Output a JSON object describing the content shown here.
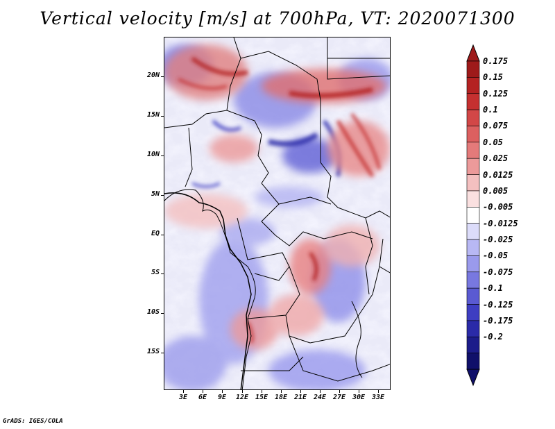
{
  "title": "Vertical velocity [m/s] at 700hPa, VT: 2020071300",
  "map": {
    "lat_labels": [
      "20N",
      "15N",
      "10N",
      "5N",
      "EQ",
      "5S",
      "10S",
      "15S"
    ],
    "lon_labels": [
      "3E",
      "6E",
      "9E",
      "12E",
      "15E",
      "18E",
      "21E",
      "24E",
      "27E",
      "30E",
      "33E"
    ],
    "lat_range": [
      -19,
      25
    ],
    "lon_range": [
      0,
      35
    ]
  },
  "colorbar": {
    "labels": [
      "0.175",
      "0.15",
      "0.125",
      "0.1",
      "0.075",
      "0.05",
      "0.025",
      "0.0125",
      "0.005",
      "-0.005",
      "-0.0125",
      "-0.025",
      "-0.05",
      "-0.075",
      "-0.1",
      "-0.125",
      "-0.175",
      "-0.2"
    ],
    "colors": [
      "#9e1a1a",
      "#b42222",
      "#c53030",
      "#d24747",
      "#dc6060",
      "#e47a7a",
      "#ec9a9a",
      "#f4c0c0",
      "#fae0e0",
      "#ffffff",
      "#dcdcfa",
      "#b8b8f4",
      "#9a9aec",
      "#7878e0",
      "#5a5ad2",
      "#3e3ec2",
      "#2a2aa8",
      "#1c1c8a",
      "#10106a"
    ]
  },
  "footer": "GrADS: IGES/COLA"
}
